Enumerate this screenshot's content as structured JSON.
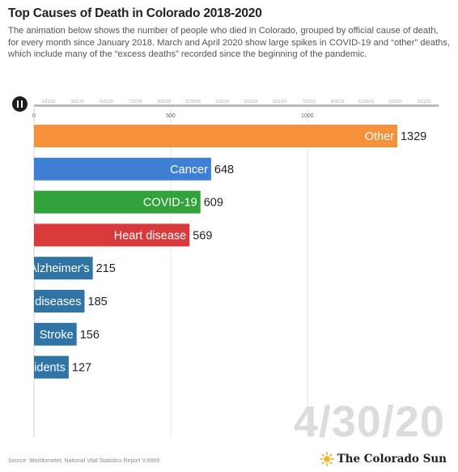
{
  "header": {
    "title": "Top Causes of Death in Colorado 2018-2020",
    "subtitle": "The animation below shows the number of people who died in Colorado, grouped by official cause of death, for every month since January 2018. March and April 2020 show large spikes in COVID-19 and “other” deaths, which include many of the “excess deaths” recorded since the beginning of the pandemic."
  },
  "controls": {
    "play_state": "playing",
    "icon": "pause-icon"
  },
  "timeline": {
    "labels": [
      "1/31/18",
      "3/31/18",
      "5/31/18",
      "7/31/18",
      "9/30/18",
      "11/30/18",
      "1/31/19",
      "3/31/19",
      "5/31/19",
      "7/31/19",
      "9/30/19",
      "11/30/19",
      "1/31/20",
      "3/31/20"
    ],
    "progress": 1.0
  },
  "chart_data": {
    "type": "bar",
    "orientation": "horizontal",
    "categories": [
      "Other",
      "Cancer",
      "COVID-19",
      "Heart disease",
      "Alzheimer's",
      "diseases",
      "Stroke",
      "idents"
    ],
    "values": [
      1329,
      648,
      609,
      569,
      215,
      185,
      156,
      127
    ],
    "colors": [
      "#f5913a",
      "#3f7fd4",
      "#34a23c",
      "#d8393a",
      "#2f74a4",
      "#2f74a4",
      "#2f74a4",
      "#2f74a4"
    ],
    "x_ticks": [
      0,
      500,
      1000
    ],
    "xlim": [
      0,
      1480
    ],
    "grid": true,
    "legend": "none"
  },
  "date_label": "4/30/20",
  "footer": {
    "source": "Source: Worldometer, National Vital Statistics Report V.68#9",
    "brand": "The Colorado Sun",
    "brand_icon": "sun-icon"
  }
}
